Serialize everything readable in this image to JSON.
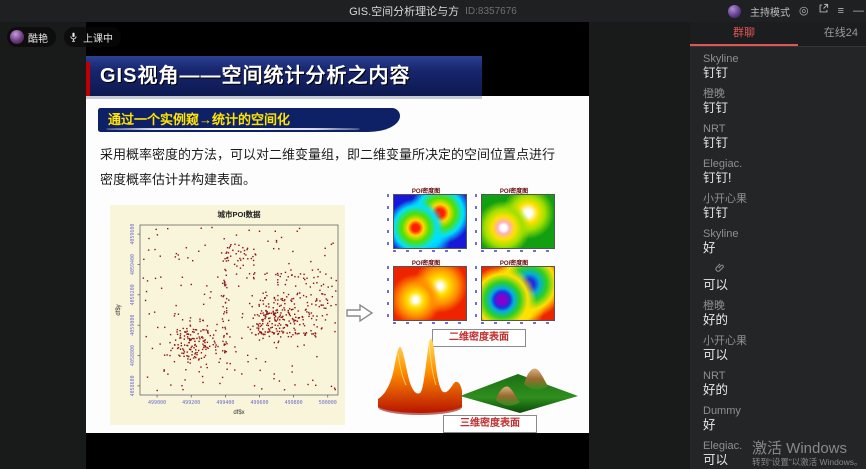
{
  "window": {
    "title": "GIS.空间分析理论与方",
    "meta_id": "ID:8357676",
    "host_mode_label": "主持模式"
  },
  "presenter": {
    "name": "酷艳",
    "status_label": "上课中"
  },
  "slide": {
    "title": "GIS视角——空间统计分析之内容",
    "highlight": "通过一个实例窥→统计的空间化",
    "body": "采用概率密度的方法，可以对二维变量组，即二维变量所决定的空间位置点进行密度概率估计并构建表面。",
    "heatmap_title": "POI密度图",
    "label_2d": "二维密度表面",
    "label_3d": "三维密度表面"
  },
  "chart_data": {
    "type": "scatter",
    "title": "城市POI数据",
    "xlabel": "df$x",
    "ylabel": "df$y",
    "xlim": [
      498900,
      500060
    ],
    "ylim": [
      4058540,
      4059660
    ],
    "xticks": [
      499000,
      499200,
      499400,
      499600,
      499800,
      500000
    ],
    "yticks": [
      4058600,
      4058800,
      4059000,
      4059200,
      4059400,
      4059600
    ],
    "grid": false,
    "bg": "#f9f5da",
    "point_color": "#8b1212",
    "clusters": [
      {
        "cx": 499210,
        "cy": 4058890,
        "sx": 75,
        "sy": 75,
        "n": 150
      },
      {
        "cx": 499700,
        "cy": 4059060,
        "sx": 95,
        "sy": 70,
        "n": 190
      },
      {
        "cx": 499470,
        "cy": 4059470,
        "sx": 55,
        "sy": 55,
        "n": 30
      },
      {
        "cx": 499930,
        "cy": 4059180,
        "sx": 60,
        "sy": 90,
        "n": 40
      }
    ],
    "vlines": [
      {
        "x": 499395,
        "y0": 4058800,
        "y1": 4059520,
        "sx": 10,
        "n": 50
      }
    ],
    "hlines": [
      {
        "y": 4058945,
        "x0": 499540,
        "x1": 499930,
        "sy": 10,
        "n": 28
      },
      {
        "y": 4059330,
        "x0": 499560,
        "x1": 499860,
        "sy": 14,
        "n": 22
      }
    ],
    "uniform": {
      "n": 180
    }
  },
  "sidebar": {
    "tabs": [
      {
        "label": "群聊",
        "active": true
      },
      {
        "label": "在线24",
        "active": false
      }
    ],
    "messages": [
      {
        "name": "Skyline",
        "text": "钉钉"
      },
      {
        "name": "橙晚",
        "text": "钉钉"
      },
      {
        "name": "NRT",
        "text": "钉钉"
      },
      {
        "name": "Elegiac.",
        "text": "钉钉!"
      },
      {
        "name": "小开心果",
        "text": "钉钉"
      },
      {
        "name": "Skyline",
        "text": "好"
      },
      {
        "name": "",
        "icon": "paperclip",
        "text": "可以"
      },
      {
        "name": "橙晚",
        "text": "好的"
      },
      {
        "name": "小开心果",
        "text": "可以"
      },
      {
        "name": "NRT",
        "text": "好的"
      },
      {
        "name": "Dummy",
        "text": "好"
      },
      {
        "name": "Elegiac.",
        "text": "可以"
      }
    ]
  },
  "watermark": {
    "line1": "激活 Windows",
    "line2": "转到“设置”以激活 Windows。"
  },
  "colors": {
    "accent_red": "#e05656",
    "slide_navy": "#17266e",
    "highlight_yellow": "#ffe400",
    "scatter_point": "#8b1212"
  }
}
